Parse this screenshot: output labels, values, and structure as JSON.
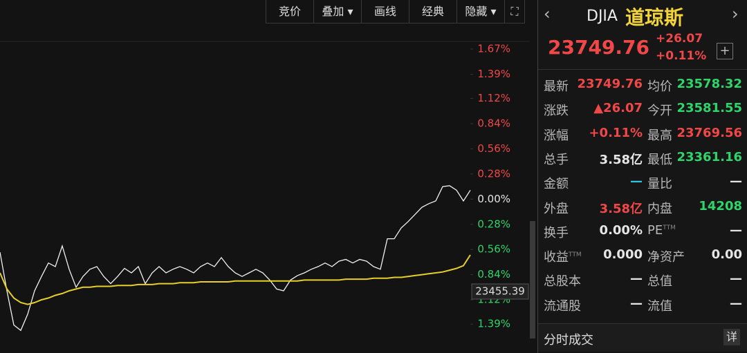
{
  "toolbar": [
    "竞价",
    "叠加",
    "画线",
    "经典",
    "隐藏"
  ],
  "quote": {
    "symbol": "DJIA",
    "name": "道琼斯",
    "price": "23749.76",
    "change": "+26.07",
    "change_pct": "+0.11%"
  },
  "stats": [
    [
      {
        "label": "最新",
        "value": "23749.76",
        "color": "#f04848"
      },
      {
        "label": "均价",
        "value": "23578.32",
        "color": "#2fd46a"
      }
    ],
    [
      {
        "label": "涨跌",
        "value": "▲26.07",
        "color": "#f04848"
      },
      {
        "label": "今开",
        "value": "23581.55",
        "color": "#2fd46a"
      }
    ],
    [
      {
        "label": "涨幅",
        "value": "+0.11%",
        "color": "#f04848"
      },
      {
        "label": "最高",
        "value": "23769.56",
        "color": "#f04848"
      }
    ],
    [
      {
        "label": "总手",
        "value": "3.58亿",
        "color": "#e6e6e6"
      },
      {
        "label": "最低",
        "value": "23361.16",
        "color": "#2fd46a"
      }
    ],
    [
      {
        "label": "金额",
        "value": "—",
        "color": "#2ec4e6"
      },
      {
        "label": "量比",
        "value": "—",
        "color": "#e6e6e6"
      }
    ],
    [
      {
        "label": "外盘",
        "value": "3.58亿",
        "color": "#f04848"
      },
      {
        "label": "内盘",
        "value": "14208",
        "color": "#2fd46a"
      }
    ],
    [
      {
        "label": "换手",
        "value": "0.00%",
        "color": "#e6e6e6"
      },
      {
        "label": "PE",
        "sup": "TTM",
        "value": "—",
        "color": "#e6e6e6"
      }
    ],
    [
      {
        "label": "收益",
        "sup": "TTM",
        "value": "0.000",
        "color": "#e6e6e6"
      },
      {
        "label": "净资产",
        "value": "0.00",
        "color": "#e6e6e6"
      }
    ],
    [
      {
        "label": "总股本",
        "value": "—",
        "color": "#e6e6e6"
      },
      {
        "label": "总值",
        "value": "—",
        "color": "#e6e6e6"
      }
    ],
    [
      {
        "label": "流通股",
        "value": "—",
        "color": "#e6e6e6"
      },
      {
        "label": "流值",
        "value": "—",
        "color": "#e6e6e6"
      }
    ]
  ],
  "footer": {
    "title": "分时成交",
    "button": "详"
  },
  "chart_data": {
    "type": "line",
    "ylim": [
      -1.55,
      1.87
    ],
    "yticks": [
      {
        "value": 1.67,
        "label": "1.67%"
      },
      {
        "value": 1.39,
        "label": "1.39%"
      },
      {
        "value": 1.12,
        "label": "1.12%"
      },
      {
        "value": 0.84,
        "label": "0.84%"
      },
      {
        "value": 0.56,
        "label": "0.56%"
      },
      {
        "value": 0.28,
        "label": "0.28%"
      },
      {
        "value": 0,
        "label": "0.00%"
      },
      {
        "value": -0.28,
        "label": "0.28%"
      },
      {
        "value": -0.56,
        "label": "0.56%"
      },
      {
        "value": -0.84,
        "label": "0.84%"
      },
      {
        "value": -1.12,
        "label": "1.12%"
      },
      {
        "value": -1.39,
        "label": "1.39%"
      }
    ],
    "crosshair_label": "23455.39",
    "series": [
      {
        "color": "#f2f2f2",
        "values": [
          -0.59,
          -1.02,
          -1.4,
          -1.46,
          -1.28,
          -1.02,
          -0.86,
          -0.71,
          -0.75,
          -0.52,
          -0.78,
          -0.98,
          -0.86,
          -0.78,
          -0.75,
          -0.86,
          -0.94,
          -0.86,
          -0.77,
          -0.82,
          -0.75,
          -0.94,
          -0.82,
          -0.75,
          -0.82,
          -0.78,
          -0.75,
          -0.78,
          -0.82,
          -0.75,
          -0.71,
          -0.75,
          -0.65,
          -0.75,
          -0.82,
          -0.86,
          -0.82,
          -0.78,
          -0.82,
          -0.9,
          -1.0,
          -1.02,
          -0.9,
          -0.85,
          -0.82,
          -0.78,
          -0.75,
          -0.71,
          -0.75,
          -0.69,
          -0.67,
          -0.71,
          -0.67,
          -0.69,
          -0.75,
          -0.78,
          -0.44,
          -0.44,
          -0.32,
          -0.25,
          -0.17,
          -0.09,
          -0.05,
          -0.02,
          0.14,
          0.15,
          0.1,
          -0.02,
          0.1
        ]
      },
      {
        "color": "#e6d02a",
        "values": [
          -0.82,
          -1.0,
          -1.1,
          -1.15,
          -1.17,
          -1.15,
          -1.12,
          -1.1,
          -1.07,
          -1.05,
          -1.02,
          -1.0,
          -0.98,
          -0.98,
          -0.97,
          -0.97,
          -0.97,
          -0.96,
          -0.96,
          -0.96,
          -0.95,
          -0.95,
          -0.95,
          -0.94,
          -0.94,
          -0.94,
          -0.93,
          -0.93,
          -0.93,
          -0.92,
          -0.92,
          -0.92,
          -0.92,
          -0.92,
          -0.91,
          -0.91,
          -0.91,
          -0.91,
          -0.91,
          -0.91,
          -0.91,
          -0.91,
          -0.91,
          -0.91,
          -0.9,
          -0.9,
          -0.9,
          -0.9,
          -0.9,
          -0.9,
          -0.89,
          -0.89,
          -0.89,
          -0.89,
          -0.88,
          -0.88,
          -0.88,
          -0.87,
          -0.87,
          -0.86,
          -0.85,
          -0.84,
          -0.83,
          -0.82,
          -0.81,
          -0.79,
          -0.77,
          -0.74,
          -0.62
        ]
      }
    ]
  }
}
